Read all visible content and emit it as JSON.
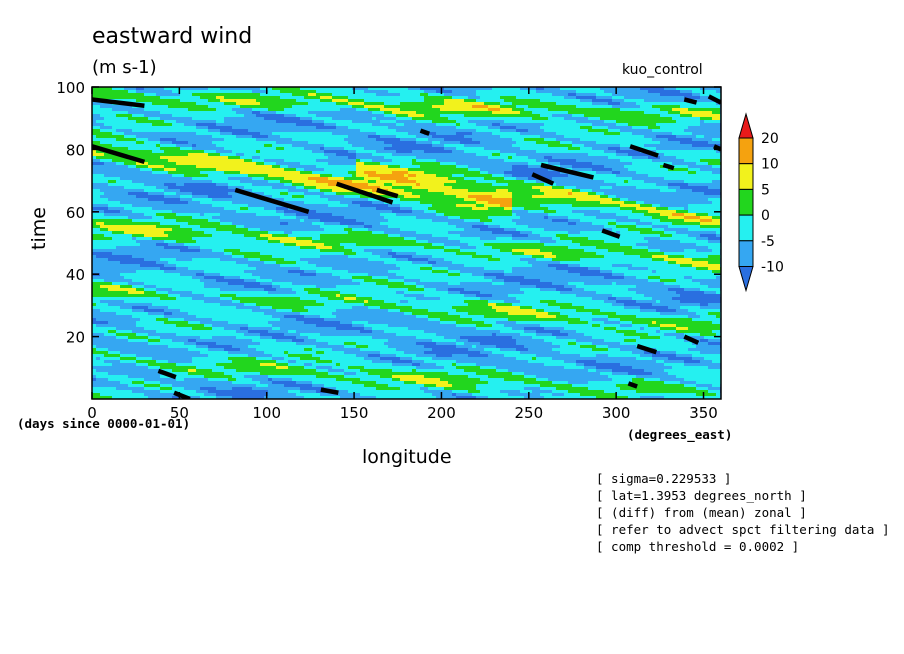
{
  "header": {
    "title": "eastward wind",
    "units": "(m s-1)",
    "run_name": "kuo_control"
  },
  "axis_notes": {
    "time_origin": "(days since 0000-01-01)",
    "x_units": "(degrees_east)"
  },
  "footnotes": [
    "[ sigma=0.229533 ]",
    "[ lat=1.3953 degrees_north ]",
    "[ (diff) from (mean) zonal ]",
    "[ refer to advect spct filtering data ]",
    "[ comp threshold = 0.0002 ]"
  ],
  "chart_data": {
    "type": "heatmap",
    "title": "eastward wind",
    "subtitle": "(m s-1)",
    "xlabel": "longitude",
    "ylabel": "time",
    "xlim": [
      0,
      360
    ],
    "ylim": [
      0,
      100
    ],
    "x_ticks": [
      0,
      50,
      100,
      150,
      200,
      250,
      300,
      350
    ],
    "y_ticks": [
      20,
      40,
      60,
      80,
      100
    ],
    "colorbar": {
      "levels": [
        "-10",
        "-5",
        "0",
        "5",
        "10",
        "20"
      ],
      "colors": [
        "#2a6fe0",
        "#35a7f2",
        "#25f0f0",
        "#22d61e",
        "#f2f21c",
        "#f5a20f",
        "#e81a1a"
      ],
      "extend": "both"
    },
    "bands": [
      {
        "t0": 80,
        "t1": 62,
        "x0": 0,
        "x1": 240,
        "amp": 13
      },
      {
        "t0": 75,
        "t1": 57,
        "x0": 150,
        "x1": 360,
        "amp": 12
      },
      {
        "t0": 97,
        "t1": 91,
        "x0": 0,
        "x1": 360,
        "amp": 9
      },
      {
        "t0": 55,
        "t1": 44,
        "x0": 0,
        "x1": 360,
        "amp": 8
      },
      {
        "t0": 35,
        "t1": 24,
        "x0": 0,
        "x1": 360,
        "amp": 7
      },
      {
        "t0": 12,
        "t1": 2,
        "x0": 0,
        "x1": 360,
        "amp": 7
      }
    ],
    "contour_segments": [
      {
        "x": [
          0,
          30
        ],
        "t": [
          96,
          94
        ]
      },
      {
        "x": [
          0,
          30
        ],
        "t": [
          81,
          76
        ]
      },
      {
        "x": [
          82,
          124
        ],
        "t": [
          67,
          60
        ]
      },
      {
        "x": [
          140,
          172
        ],
        "t": [
          69,
          63
        ]
      },
      {
        "x": [
          163,
          175
        ],
        "t": [
          67,
          65
        ]
      },
      {
        "x": [
          188,
          193
        ],
        "t": [
          86,
          85
        ]
      },
      {
        "x": [
          257,
          287
        ],
        "t": [
          75,
          71
        ]
      },
      {
        "x": [
          252,
          264
        ],
        "t": [
          72,
          69
        ]
      },
      {
        "x": [
          292,
          302
        ],
        "t": [
          54,
          52
        ]
      },
      {
        "x": [
          308,
          324
        ],
        "t": [
          81,
          78
        ]
      },
      {
        "x": [
          327,
          333
        ],
        "t": [
          75,
          74
        ]
      },
      {
        "x": [
          339,
          346
        ],
        "t": [
          96,
          95
        ]
      },
      {
        "x": [
          353,
          360
        ],
        "t": [
          97,
          95
        ]
      },
      {
        "x": [
          356,
          360
        ],
        "t": [
          81,
          80
        ]
      },
      {
        "x": [
          312,
          323
        ],
        "t": [
          17,
          15
        ]
      },
      {
        "x": [
          339,
          347
        ],
        "t": [
          20,
          18
        ]
      },
      {
        "x": [
          38,
          48
        ],
        "t": [
          9,
          7
        ]
      },
      {
        "x": [
          47,
          56
        ],
        "t": [
          2,
          0
        ]
      },
      {
        "x": [
          131,
          141
        ],
        "t": [
          3,
          2
        ]
      },
      {
        "x": [
          307,
          312
        ],
        "t": [
          5,
          4
        ]
      }
    ]
  }
}
